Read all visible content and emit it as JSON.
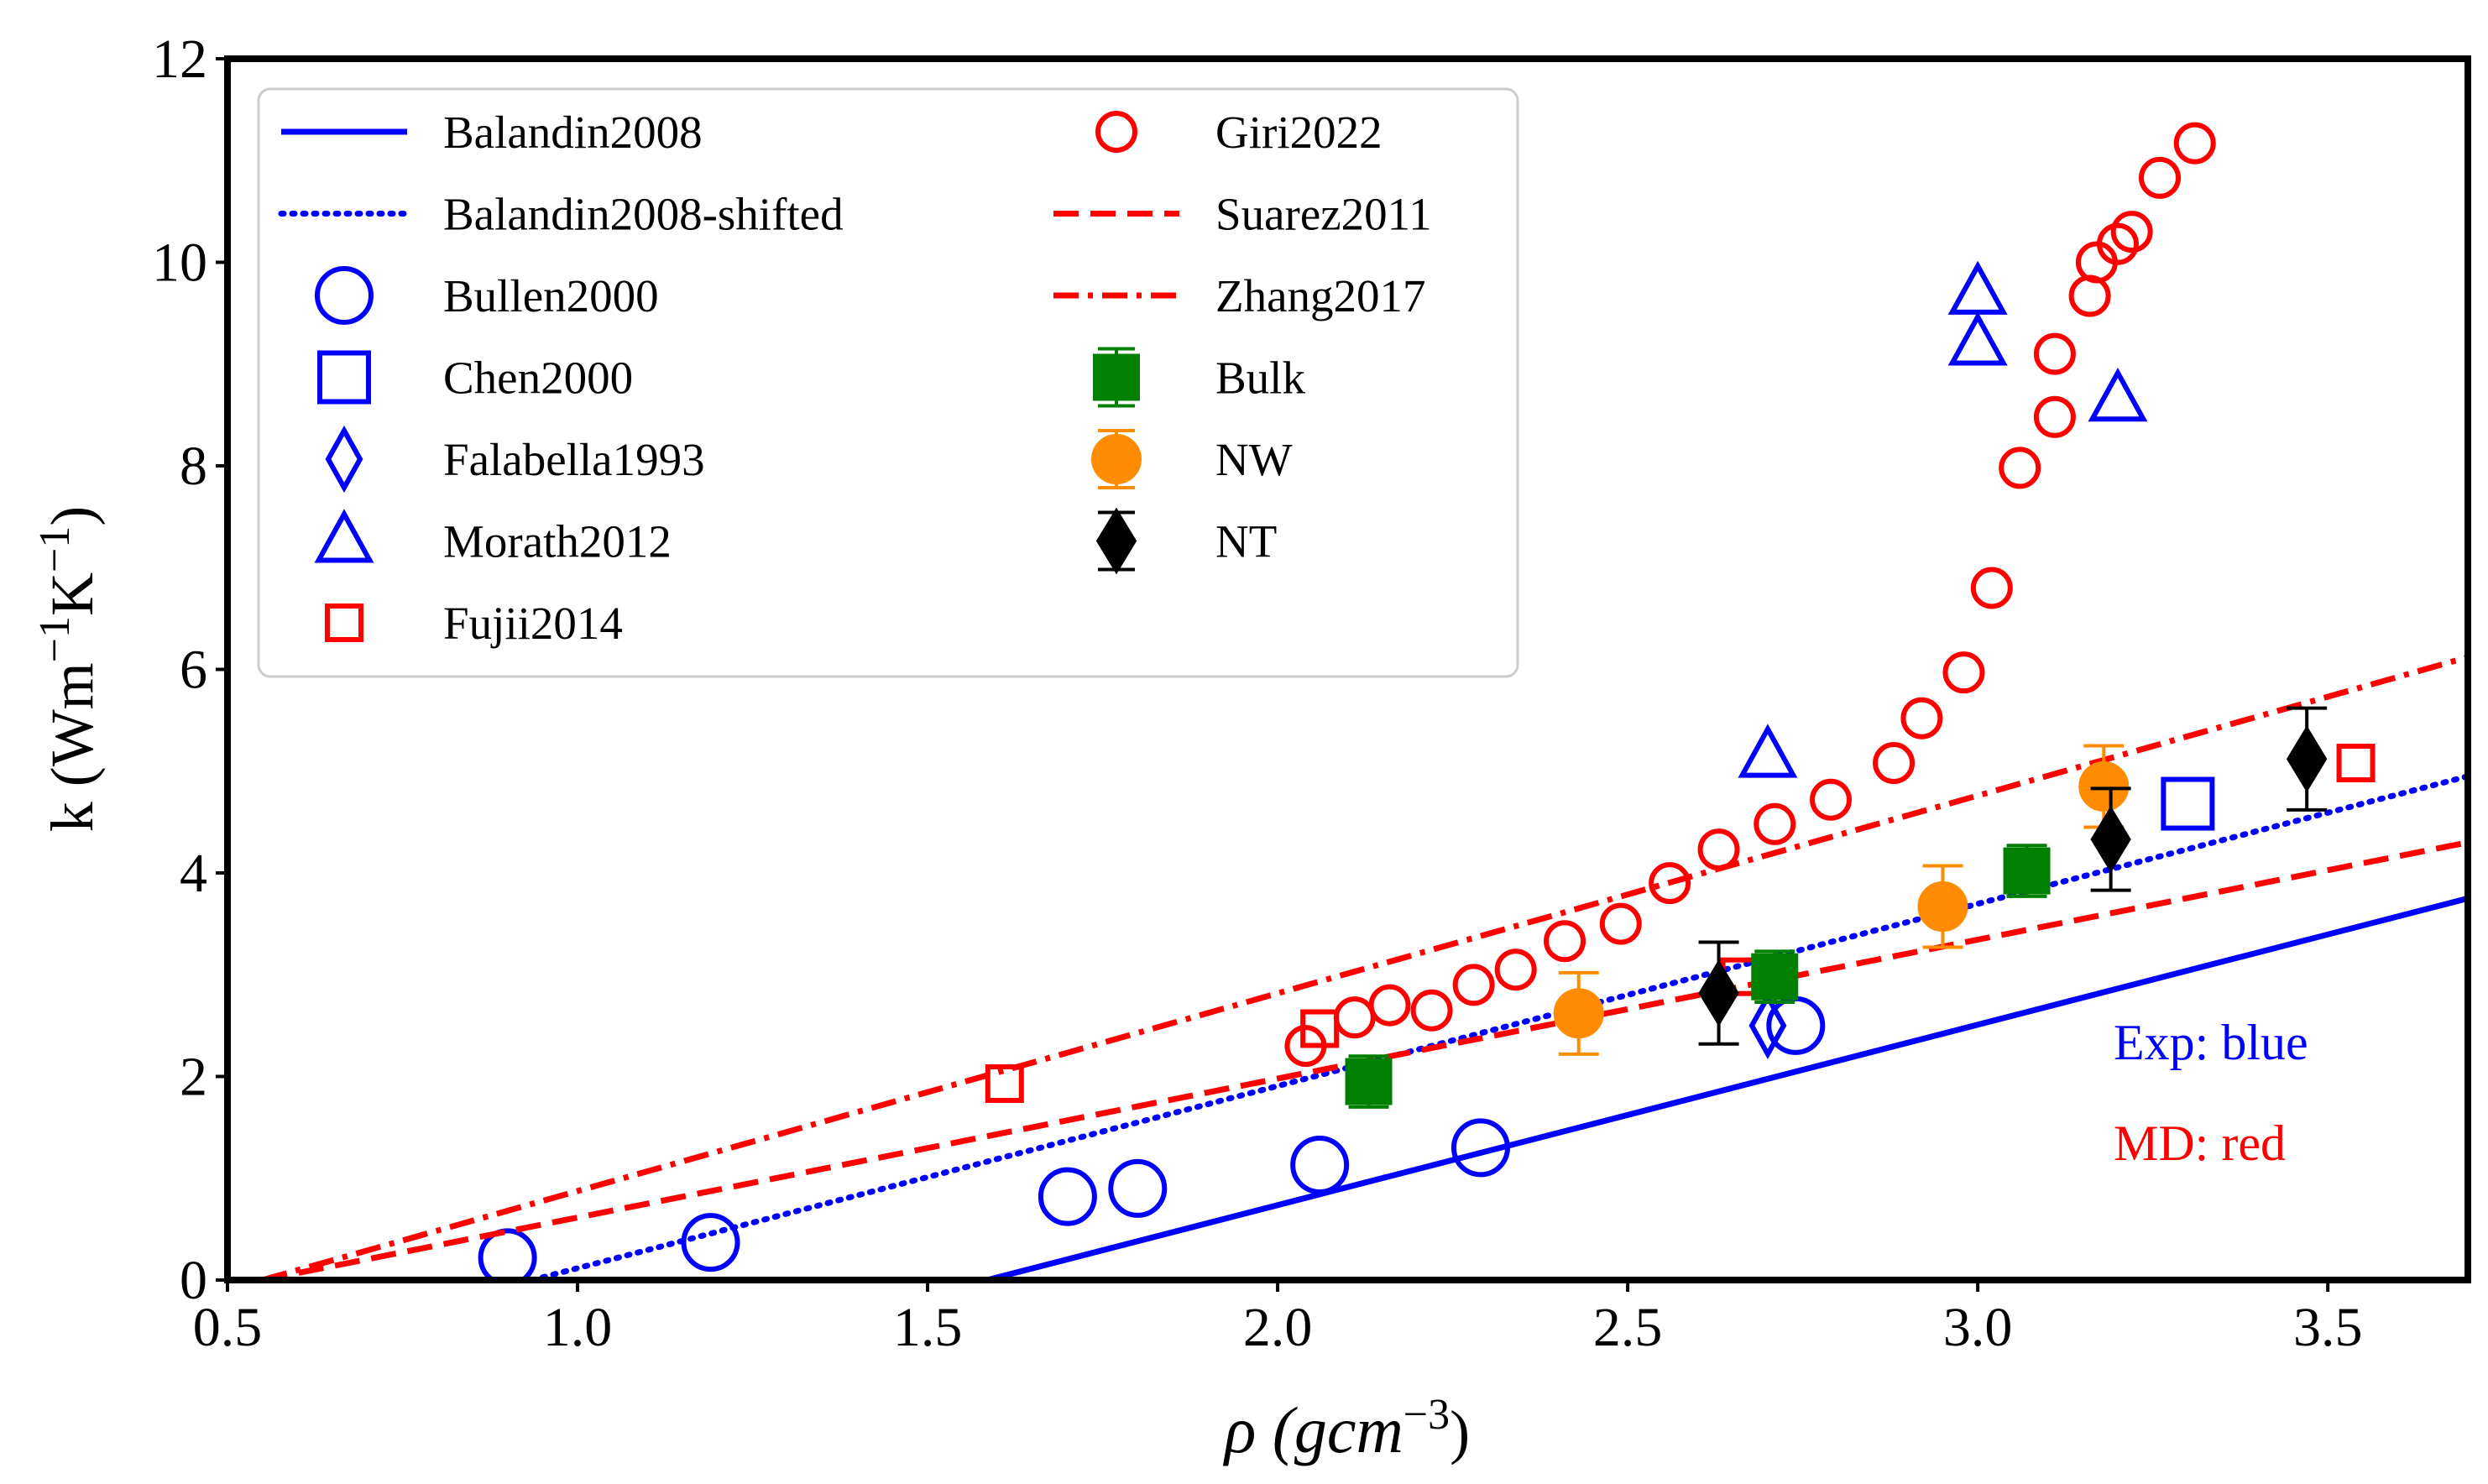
{
  "chart_data": {
    "type": "scatter",
    "xlim": [
      0.5,
      3.7
    ],
    "ylim": [
      0,
      12
    ],
    "xticks": [
      "0.5",
      "1.0",
      "1.5",
      "2.0",
      "2.5",
      "3.0",
      "3.5"
    ],
    "yticks": [
      "0",
      "2",
      "4",
      "6",
      "8",
      "10",
      "12"
    ],
    "xlabel": {
      "base": "ρ (gcm",
      "sup": "−3",
      "tail": ")"
    },
    "ylabel": {
      "part1": "k (Wm",
      "sup1": "−1",
      "part2": "K",
      "sup2": "−1",
      "tail": ")"
    },
    "grid": false,
    "legend_position": "top-left",
    "annotations": [
      {
        "text": "Exp: blue",
        "color": "#0000ff"
      },
      {
        "text": "MD: red",
        "color": "#ff0000"
      }
    ],
    "series": [
      {
        "name": "Balandin2008",
        "kind": "line",
        "style": "solid",
        "color": "#0000ff",
        "x": [
          1.585,
          3.7
        ],
        "y": [
          0.0,
          3.75
        ]
      },
      {
        "name": "Balandin2008-shifted",
        "kind": "line",
        "style": "dotted",
        "color": "#0000ff",
        "x": [
          0.935,
          3.7
        ],
        "y": [
          0.0,
          4.95
        ]
      },
      {
        "name": "Bullen2000",
        "kind": "marker",
        "marker": "circle",
        "fill": false,
        "color": "#0000ff",
        "x": [
          0.9,
          1.19,
          1.7,
          1.8,
          2.06,
          2.29,
          2.74
        ],
        "y": [
          0.22,
          0.37,
          0.82,
          0.9,
          1.13,
          1.3,
          2.5
        ]
      },
      {
        "name": "Chen2000",
        "kind": "marker",
        "marker": "square",
        "fill": false,
        "color": "#0000ff",
        "x": [
          3.3
        ],
        "y": [
          4.68
        ]
      },
      {
        "name": "Falabella1993",
        "kind": "marker",
        "marker": "diamond",
        "fill": false,
        "color": "#0000ff",
        "x": [
          2.7
        ],
        "y": [
          2.5
        ]
      },
      {
        "name": "Morath2012",
        "kind": "marker",
        "marker": "triangle",
        "fill": false,
        "color": "#0000ff",
        "x": [
          2.7,
          3.0,
          3.0,
          3.2
        ],
        "y": [
          5.15,
          9.7,
          9.2,
          8.65
        ]
      },
      {
        "name": "Fujii2014",
        "kind": "marker",
        "marker": "square",
        "small": true,
        "fill": false,
        "color": "#ff0000",
        "x": [
          1.61,
          2.06,
          2.66,
          3.54
        ],
        "y": [
          1.93,
          2.47,
          2.98,
          5.08
        ]
      },
      {
        "name": "Giri2022",
        "kind": "marker",
        "marker": "circle",
        "small": true,
        "fill": false,
        "color": "#ff0000",
        "x": [
          2.04,
          2.11,
          2.16,
          2.22,
          2.28,
          2.34,
          2.41,
          2.49,
          2.56,
          2.63,
          2.71,
          2.79,
          2.88,
          2.92,
          2.98,
          3.02,
          3.06,
          3.11,
          3.11,
          3.16,
          3.17,
          3.2,
          3.22,
          3.26,
          3.31
        ],
        "y": [
          2.3,
          2.58,
          2.7,
          2.65,
          2.9,
          3.05,
          3.33,
          3.5,
          3.9,
          4.23,
          4.48,
          4.72,
          5.08,
          5.52,
          5.97,
          6.8,
          7.98,
          8.48,
          9.1,
          9.67,
          10.0,
          10.18,
          10.3,
          10.83,
          11.17
        ]
      },
      {
        "name": "Suarez2011",
        "kind": "line",
        "style": "dashed",
        "color": "#ff0000",
        "x": [
          0.55,
          3.7
        ],
        "y": [
          0.0,
          4.3
        ]
      },
      {
        "name": "Zhang2017",
        "kind": "line",
        "style": "dashdot",
        "color": "#ff0000",
        "x": [
          0.55,
          3.7
        ],
        "y": [
          0.0,
          6.12
        ]
      },
      {
        "name": "Bulk",
        "kind": "marker",
        "marker": "square",
        "fill": true,
        "color": "#008000",
        "errorbar": true,
        "x": [
          2.13,
          2.71,
          3.07
        ],
        "y": [
          1.95,
          2.98,
          4.02
        ],
        "err": [
          0.25,
          0.25,
          0.25
        ]
      },
      {
        "name": "NW",
        "kind": "marker",
        "marker": "circle",
        "fill": true,
        "color": "#ff8c00",
        "errorbar": true,
        "x": [
          2.43,
          2.95,
          3.18
        ],
        "y": [
          2.62,
          3.67,
          4.85
        ],
        "err": [
          0.4,
          0.4,
          0.4
        ]
      },
      {
        "name": "NT",
        "kind": "marker",
        "marker": "diamond",
        "fill": true,
        "color": "#000000",
        "errorbar": true,
        "x": [
          2.63,
          3.19,
          3.47
        ],
        "y": [
          2.82,
          4.33,
          5.12
        ],
        "err": [
          0.5,
          0.5,
          0.5
        ]
      }
    ]
  }
}
